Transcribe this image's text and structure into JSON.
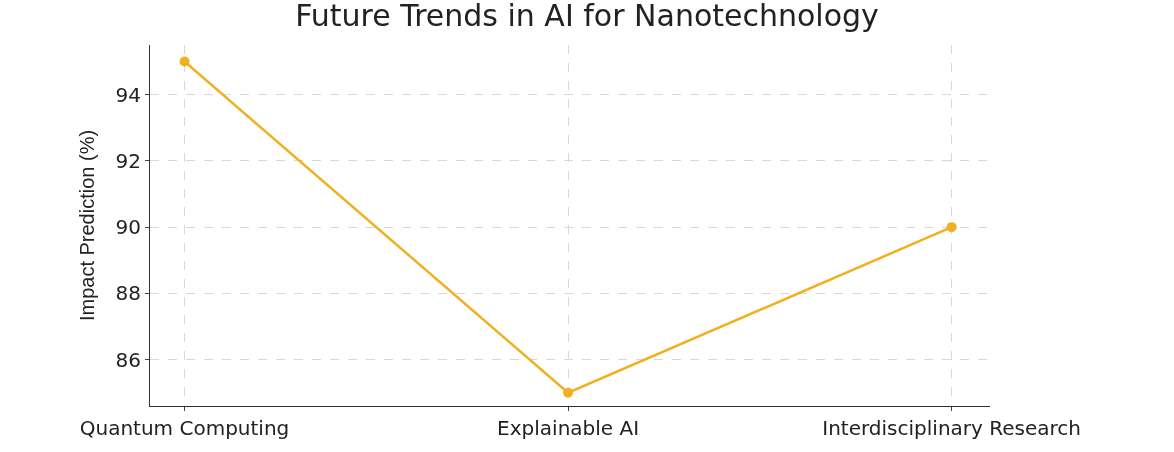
{
  "chart_data": {
    "type": "line",
    "title": "Future Trends in AI for Nanotechnology",
    "ylabel": "Impact Prediction (%)",
    "categories": [
      "Quantum Computing",
      "Explainable AI",
      "Interdisciplinary Research"
    ],
    "series": [
      {
        "color": "#f0b020",
        "values": [
          95,
          85,
          90
        ]
      }
    ],
    "ylim": [
      84.6,
      95.5
    ],
    "yticks": [
      86,
      88,
      90,
      92,
      94
    ],
    "grid": true,
    "marker": "circle",
    "line_style": "solid"
  }
}
